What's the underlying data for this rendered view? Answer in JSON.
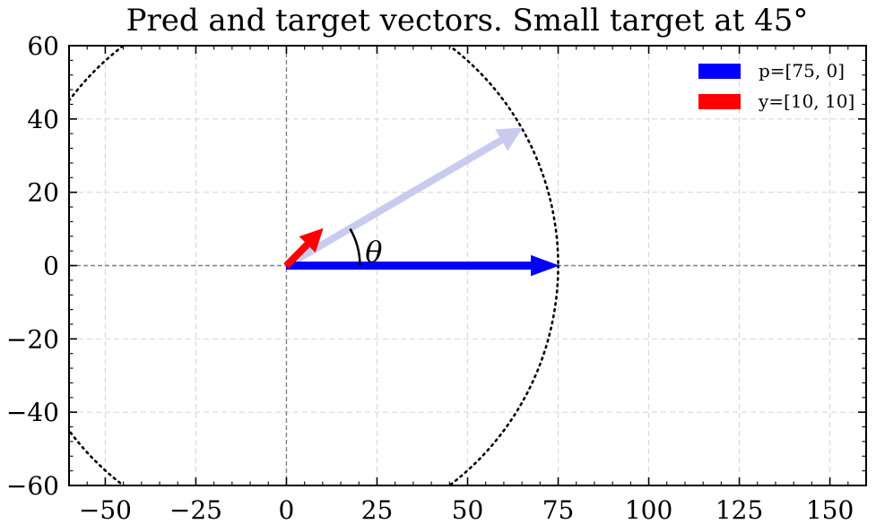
{
  "chart_data": {
    "type": "line",
    "title": "Pred and target vectors. Small target at 45°",
    "xlabel": "",
    "ylabel": "",
    "xlim": [
      -60,
      160
    ],
    "ylim": [
      -60,
      60
    ],
    "xticks": [
      -50,
      -25,
      0,
      25,
      50,
      75,
      100,
      125,
      150
    ],
    "yticks": [
      -60,
      -40,
      -20,
      0,
      20,
      40,
      60
    ],
    "xtick_labels": [
      "−50",
      "−25",
      "0",
      "25",
      "50",
      "75",
      "100",
      "125",
      "150"
    ],
    "ytick_labels": [
      "−60",
      "−40",
      "−20",
      "0",
      "20",
      "40",
      "60"
    ],
    "grid": true,
    "legend_position": "top-right",
    "series": [
      {
        "name": "p=[75, 0]",
        "color": "#0000ff",
        "values": [
          [
            0,
            0
          ],
          [
            75,
            0
          ]
        ]
      },
      {
        "name": "y=[10, 10]",
        "color": "#ff0000",
        "values": [
          [
            0,
            0
          ],
          [
            10,
            10
          ]
        ]
      }
    ],
    "rotated_vector": {
      "color": "#c8cbee",
      "values": [
        [
          0,
          0
        ],
        [
          65,
          37.5
        ]
      ]
    },
    "circle": {
      "center": [
        0,
        0
      ],
      "radius": 75,
      "style": "dotted"
    },
    "angle_annotation": {
      "label": "θ",
      "from_deg": 0,
      "to_deg": 30
    }
  }
}
